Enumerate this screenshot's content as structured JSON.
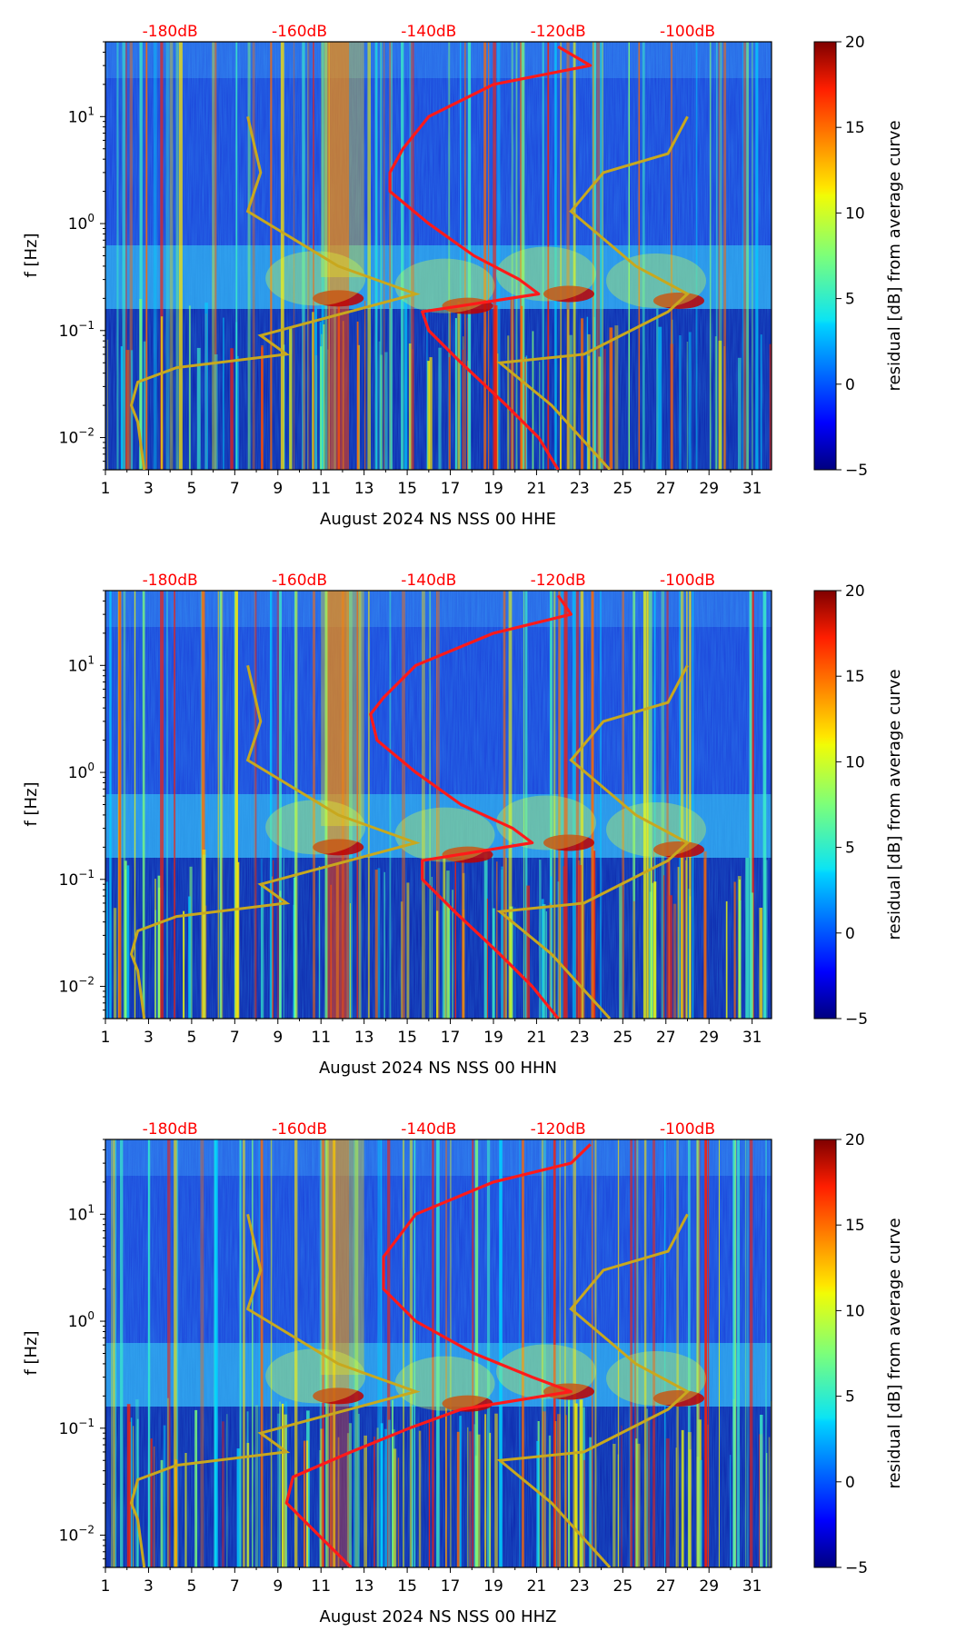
{
  "colors": {
    "psd_curve": "#ff1a1a",
    "noise_model": "#c8a81e",
    "db_label": "#ff0000"
  },
  "colorbar": {
    "label": "residual [dB] from average curve",
    "ticks": [
      "20",
      "15",
      "10",
      "5",
      "0",
      "−5"
    ],
    "range": [
      -5,
      20
    ],
    "colormap": "jet"
  },
  "chart_data": [
    {
      "type": "heatmap",
      "xlabel": "August 2024 NS NSS 00 HHE",
      "ylabel": "f [Hz]",
      "xlim": [
        1,
        31.9
      ],
      "ylim": [
        0.005,
        50
      ],
      "yscale": "log",
      "x_ticks": [
        "1",
        "3",
        "5",
        "7",
        "9",
        "11",
        "13",
        "15",
        "17",
        "19",
        "21",
        "23",
        "25",
        "27",
        "29",
        "31"
      ],
      "y_ticks": [
        {
          "base": "10",
          "exp": "1"
        },
        {
          "base": "10",
          "exp": "0"
        },
        {
          "base": "10",
          "exp": "−1"
        },
        {
          "base": "10",
          "exp": "−2"
        }
      ],
      "top_db_labels": [
        "-180dB",
        "-160dB",
        "-140dB",
        "-120dB",
        "-100dB"
      ],
      "top_db_values": [
        -180,
        -160,
        -140,
        -120,
        -100
      ],
      "average_psd_dB_vs_freq": [
        {
          "f": 0.005,
          "db": -120
        },
        {
          "f": 0.01,
          "db": -123
        },
        {
          "f": 0.02,
          "db": -128
        },
        {
          "f": 0.05,
          "db": -135
        },
        {
          "f": 0.1,
          "db": -140
        },
        {
          "f": 0.15,
          "db": -141
        },
        {
          "f": 0.22,
          "db": -123
        },
        {
          "f": 0.3,
          "db": -126
        },
        {
          "f": 0.5,
          "db": -133
        },
        {
          "f": 1,
          "db": -140
        },
        {
          "f": 2,
          "db": -146
        },
        {
          "f": 3,
          "db": -146
        },
        {
          "f": 5,
          "db": -144
        },
        {
          "f": 10,
          "db": -140
        },
        {
          "f": 20,
          "db": -130
        },
        {
          "f": 30,
          "db": -115
        },
        {
          "f": 45,
          "db": -120
        }
      ],
      "scale_mapping_note": "PSD and noise model curves share the top dB axis"
    },
    {
      "type": "heatmap",
      "xlabel": "August 2024 NS NSS 00 HHN",
      "ylabel": "f [Hz]",
      "xlim": [
        1,
        31.9
      ],
      "ylim": [
        0.005,
        50
      ],
      "yscale": "log",
      "x_ticks": [
        "1",
        "3",
        "5",
        "7",
        "9",
        "11",
        "13",
        "15",
        "17",
        "19",
        "21",
        "23",
        "25",
        "27",
        "29",
        "31"
      ],
      "y_ticks": [
        {
          "base": "10",
          "exp": "1"
        },
        {
          "base": "10",
          "exp": "0"
        },
        {
          "base": "10",
          "exp": "−1"
        },
        {
          "base": "10",
          "exp": "−2"
        }
      ],
      "top_db_labels": [
        "-180dB",
        "-160dB",
        "-140dB",
        "-120dB",
        "-100dB"
      ],
      "top_db_values": [
        -180,
        -160,
        -140,
        -120,
        -100
      ],
      "average_psd_dB_vs_freq": [
        {
          "f": 0.005,
          "db": -120
        },
        {
          "f": 0.01,
          "db": -124
        },
        {
          "f": 0.02,
          "db": -129
        },
        {
          "f": 0.05,
          "db": -136
        },
        {
          "f": 0.1,
          "db": -141
        },
        {
          "f": 0.15,
          "db": -141
        },
        {
          "f": 0.22,
          "db": -124
        },
        {
          "f": 0.3,
          "db": -127
        },
        {
          "f": 0.5,
          "db": -135
        },
        {
          "f": 1,
          "db": -142
        },
        {
          "f": 2,
          "db": -148
        },
        {
          "f": 3.5,
          "db": -149
        },
        {
          "f": 5,
          "db": -147
        },
        {
          "f": 10,
          "db": -142
        },
        {
          "f": 20,
          "db": -130
        },
        {
          "f": 30,
          "db": -118
        },
        {
          "f": 45,
          "db": -120
        }
      ]
    },
    {
      "type": "heatmap",
      "xlabel": "August 2024 NS NSS 00 HHZ",
      "ylabel": "f [Hz]",
      "xlim": [
        1,
        31.9
      ],
      "ylim": [
        0.005,
        50
      ],
      "yscale": "log",
      "x_ticks": [
        "1",
        "3",
        "5",
        "7",
        "9",
        "11",
        "13",
        "15",
        "17",
        "19",
        "21",
        "23",
        "25",
        "27",
        "29",
        "31"
      ],
      "y_ticks": [
        {
          "base": "10",
          "exp": "1"
        },
        {
          "base": "10",
          "exp": "0"
        },
        {
          "base": "10",
          "exp": "−1"
        },
        {
          "base": "10",
          "exp": "−2"
        }
      ],
      "top_db_labels": [
        "-180dB",
        "-160dB",
        "-140dB",
        "-120dB",
        "-100dB"
      ],
      "top_db_values": [
        -180,
        -160,
        -140,
        -120,
        -100
      ],
      "average_psd_dB_vs_freq": [
        {
          "f": 0.005,
          "db": -152
        },
        {
          "f": 0.01,
          "db": -157
        },
        {
          "f": 0.02,
          "db": -162
        },
        {
          "f": 0.035,
          "db": -161
        },
        {
          "f": 0.06,
          "db": -152
        },
        {
          "f": 0.1,
          "db": -143
        },
        {
          "f": 0.15,
          "db": -135
        },
        {
          "f": 0.22,
          "db": -118
        },
        {
          "f": 0.3,
          "db": -124
        },
        {
          "f": 0.5,
          "db": -133
        },
        {
          "f": 1,
          "db": -142
        },
        {
          "f": 2,
          "db": -147
        },
        {
          "f": 4,
          "db": -147
        },
        {
          "f": 10,
          "db": -142
        },
        {
          "f": 20,
          "db": -130
        },
        {
          "f": 30,
          "db": -118
        },
        {
          "f": 45,
          "db": -115
        }
      ]
    }
  ],
  "noise_models": {
    "high": [
      {
        "f": 0.005,
        "db": -112
      },
      {
        "f": 0.02,
        "db": -121
      },
      {
        "f": 0.05,
        "db": -129
      },
      {
        "f": 0.06,
        "db": -116
      },
      {
        "f": 0.15,
        "db": -103
      },
      {
        "f": 0.22,
        "db": -100
      },
      {
        "f": 0.4,
        "db": -108
      },
      {
        "f": 1.3,
        "db": -118
      },
      {
        "f": 3,
        "db": -113
      },
      {
        "f": 4.5,
        "db": -103
      },
      {
        "f": 10,
        "db": -100
      }
    ],
    "low": [
      {
        "f": 0.005,
        "db": -184
      },
      {
        "f": 0.014,
        "db": -185
      },
      {
        "f": 0.02,
        "db": -186
      },
      {
        "f": 0.033,
        "db": -185
      },
      {
        "f": 0.045,
        "db": -179
      },
      {
        "f": 0.06,
        "db": -162
      },
      {
        "f": 0.09,
        "db": -166
      },
      {
        "f": 0.22,
        "db": -142
      },
      {
        "f": 0.4,
        "db": -154
      },
      {
        "f": 1.3,
        "db": -168
      },
      {
        "f": 3,
        "db": -166
      },
      {
        "f": 10,
        "db": -168
      }
    ]
  }
}
